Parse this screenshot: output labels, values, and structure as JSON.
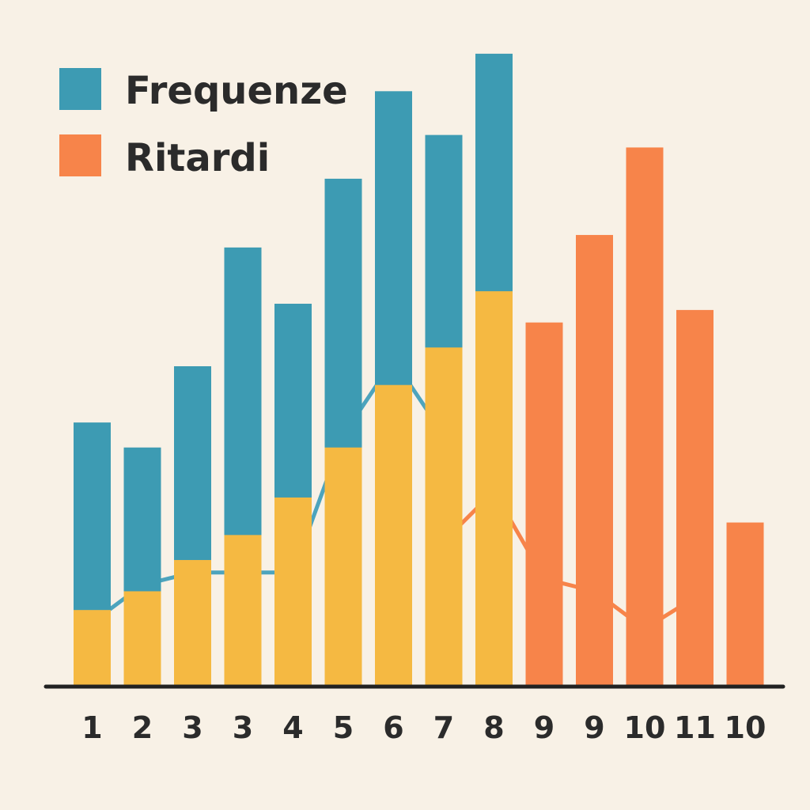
{
  "chart_data": {
    "type": "bar",
    "categories": [
      "1",
      "2",
      "3",
      "3",
      "4",
      "5",
      "6",
      "7",
      "8",
      "9",
      "9",
      "10",
      "11",
      "10"
    ],
    "series": [
      {
        "name": "Frequenze",
        "color": "#3d9bb3",
        "values": [
          42,
          38,
          51,
          70,
          61,
          81,
          95,
          88,
          101,
          null,
          null,
          null,
          null,
          null
        ]
      },
      {
        "name": "Ritardi",
        "color": "#f7844a",
        "values": [
          null,
          null,
          null,
          null,
          null,
          null,
          null,
          null,
          null,
          58,
          72,
          86,
          60,
          26
        ]
      },
      {
        "color": "#f5b942",
        "values": [
          12,
          15,
          20,
          24,
          30,
          38,
          48,
          54,
          63,
          null,
          null,
          null,
          null,
          null
        ]
      }
    ],
    "lines": [
      {
        "color": "#4da4bd",
        "values": [
          10,
          16,
          18,
          18,
          18,
          40,
          52,
          40,
          null,
          null,
          null,
          null,
          null,
          null
        ]
      },
      {
        "color": "#f7844a",
        "values": [
          null,
          null,
          null,
          null,
          null,
          null,
          null,
          23,
          31,
          17,
          15,
          9,
          14,
          null
        ]
      }
    ],
    "ylim": [
      0,
      102
    ],
    "grid": false,
    "legend_position": "top-left"
  }
}
